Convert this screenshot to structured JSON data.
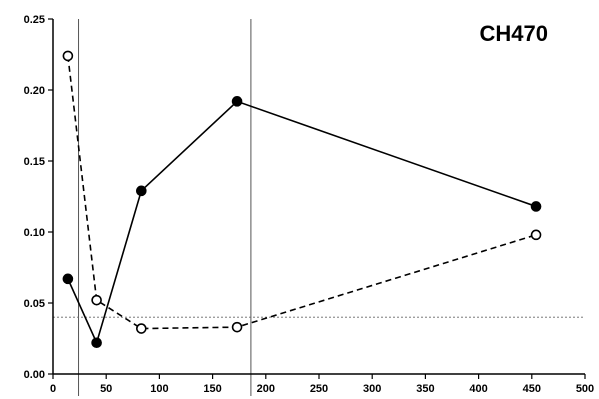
{
  "chart_data": {
    "type": "line",
    "title": "CH470",
    "xlabel": "",
    "ylabel": "",
    "xlim": [
      0,
      500
    ],
    "ylim": [
      0,
      0.25
    ],
    "x_ticks": [
      0,
      50,
      100,
      150,
      200,
      250,
      300,
      350,
      400,
      450,
      500
    ],
    "y_ticks": [
      0.0,
      0.05,
      0.1,
      0.15,
      0.2,
      0.25
    ],
    "x_tick_labels": [
      "0",
      "50",
      "100",
      "150",
      "200",
      "250",
      "300",
      "350",
      "400",
      "450",
      "500"
    ],
    "y_tick_labels": [
      "0.00",
      "0.05",
      "0.10",
      "0.15",
      "0.20",
      "0.25"
    ],
    "series": [
      {
        "style": "solid",
        "marker": "filled-circle",
        "x": [
          14,
          41,
          83,
          173,
          454
        ],
        "y": [
          0.067,
          0.022,
          0.129,
          0.192,
          0.118
        ]
      },
      {
        "style": "dashed",
        "marker": "open-circle",
        "x": [
          14,
          41,
          83,
          173,
          454
        ],
        "y": [
          0.224,
          0.052,
          0.032,
          0.033,
          0.098
        ]
      }
    ],
    "reference_lines": {
      "vertical": [
        24,
        186
      ],
      "horizontal": [
        0.04
      ]
    },
    "grid": false,
    "legend": "none"
  }
}
